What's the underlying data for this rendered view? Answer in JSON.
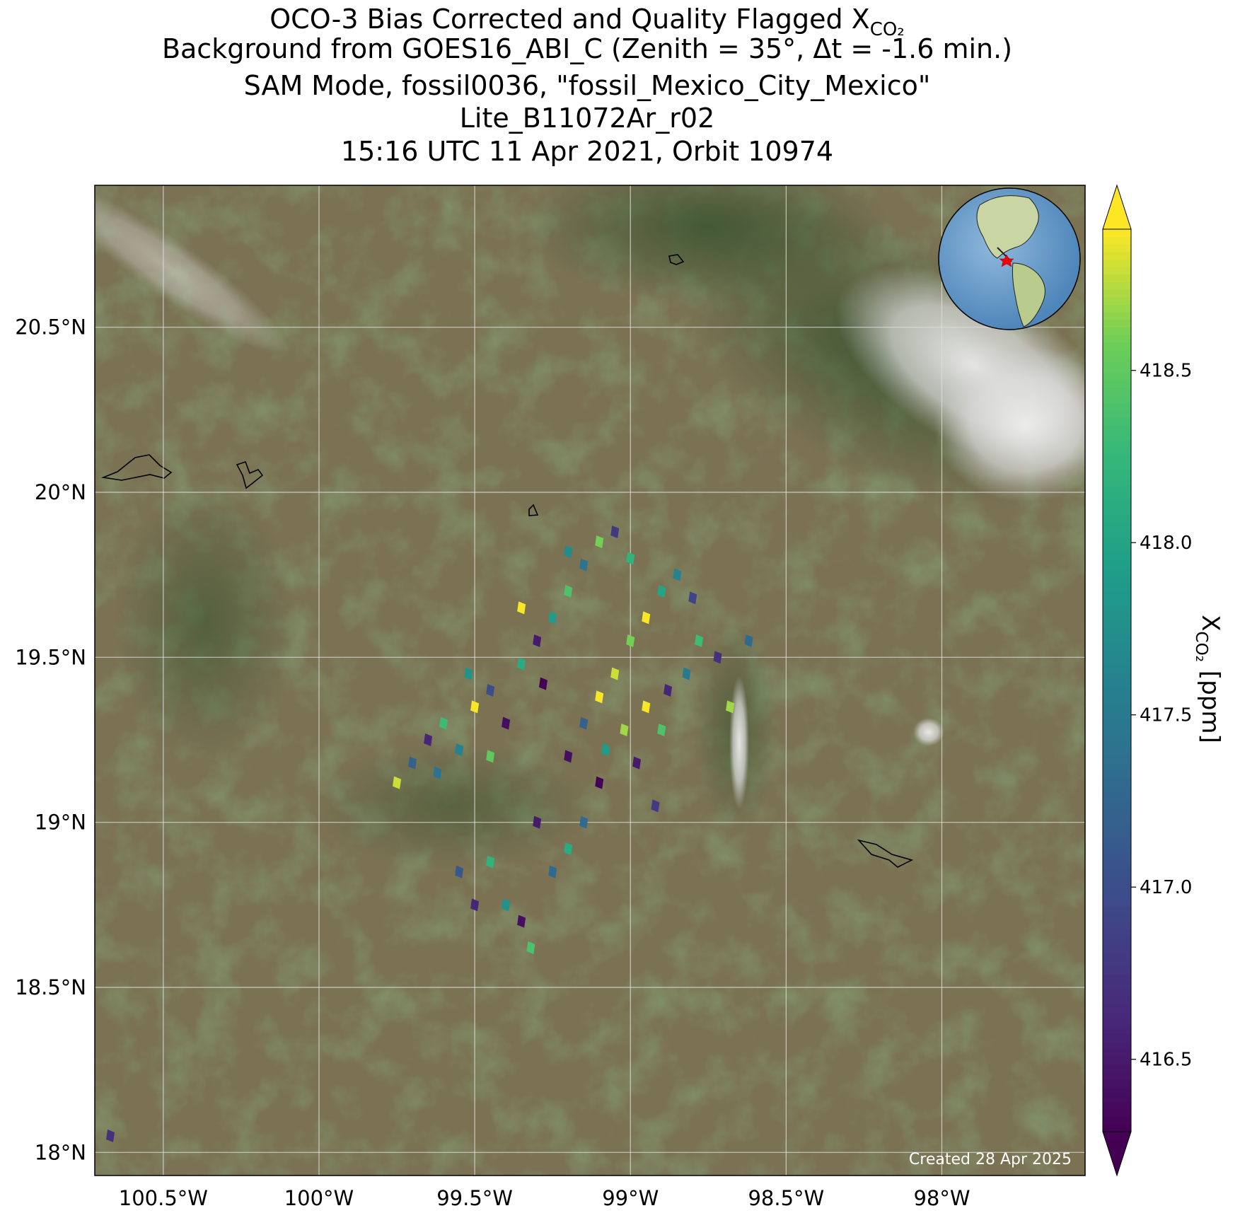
{
  "chart_data": {
    "type": "scatter",
    "title": "OCO-3 Bias Corrected and Quality Flagged X",
    "title_subscript": "CO₂",
    "subtitles": [
      "Background from GOES16_ABI_C (Zenith = 35$^\\circ$, Δt = -1.6 min.)",
      "SAM Mode, fossil0036, \"fossil_Mexico_City_Mexico\"",
      "Lite_B11072Ar_r02",
      "15:16 UTC 11 Apr 2021, Orbit 10974"
    ],
    "footnote": "Created 28 Apr 2025",
    "xlim": [
      -100.72,
      -97.54
    ],
    "ylim": [
      17.93,
      20.93
    ],
    "xticks": [
      {
        "value": -100.5,
        "label": "100.5°W"
      },
      {
        "value": -100,
        "label": "100°W"
      },
      {
        "value": -99.5,
        "label": "99.5°W"
      },
      {
        "value": -99,
        "label": "99°W"
      },
      {
        "value": -98.5,
        "label": "98.5°W"
      },
      {
        "value": -98,
        "label": "98°W"
      }
    ],
    "yticks": [
      {
        "value": 20.5,
        "label": "20.5°N"
      },
      {
        "value": 20,
        "label": "20°N"
      },
      {
        "value": 19.5,
        "label": "19.5°N"
      },
      {
        "value": 19,
        "label": "19°N"
      },
      {
        "value": 18.5,
        "label": "18.5°N"
      },
      {
        "value": 18,
        "label": "18°N"
      }
    ],
    "grid": true,
    "colormap": "viridis",
    "colorbar": {
      "label": "X",
      "label_subscript": "CO₂",
      "label_unit": "[ppm]",
      "clim": [
        416.29,
        418.91
      ],
      "ticks": [
        416.5,
        {
          "value": 417,
          "label": "417.0"
        },
        417.5,
        {
          "value": 418,
          "label": "418.0"
        },
        418.5
      ]
    },
    "x": [
      -99.75,
      -99.7,
      -99.65,
      -99.6,
      -99.55,
      -99.5,
      -99.45,
      -99.52,
      -99.4,
      -99.35,
      -99.3,
      -99.25,
      -99.35,
      -99.2,
      -99.15,
      -99.1,
      -99.05,
      -99.0,
      -99.2,
      -99.28,
      -99.62,
      -99.45,
      -99.2,
      -99.15,
      -99.1,
      -99.05,
      -99.0,
      -98.95,
      -98.9,
      -98.85,
      -98.8,
      -98.78,
      -98.82,
      -98.88,
      -98.95,
      -99.02,
      -99.1,
      -99.08,
      -98.98,
      -98.9,
      -98.72,
      -98.62,
      -98.68,
      -99.3,
      -99.55,
      -99.5,
      -99.45,
      -99.4,
      -99.35,
      -99.25,
      -99.2,
      -99.32,
      -98.92,
      -99.15,
      -100.67
    ],
    "y": [
      19.12,
      19.18,
      19.25,
      19.3,
      19.22,
      19.35,
      19.4,
      19.45,
      19.3,
      19.48,
      19.55,
      19.62,
      19.65,
      19.7,
      19.78,
      19.85,
      19.88,
      19.8,
      19.82,
      19.42,
      19.15,
      19.2,
      19.2,
      19.3,
      19.38,
      19.45,
      19.55,
      19.62,
      19.7,
      19.75,
      19.68,
      19.55,
      19.45,
      19.4,
      19.35,
      19.28,
      19.12,
      19.22,
      19.18,
      19.28,
      19.5,
      19.55,
      19.35,
      19.0,
      18.85,
      18.75,
      18.88,
      18.75,
      18.7,
      18.85,
      18.92,
      18.62,
      19.05,
      19.0,
      18.05
    ],
    "values": [
      418.8,
      417.2,
      416.6,
      418.3,
      417.6,
      418.9,
      417.0,
      417.8,
      416.4,
      418.1,
      416.5,
      417.9,
      418.9,
      418.4,
      417.4,
      418.6,
      416.8,
      418.2,
      417.7,
      416.3,
      417.4,
      418.5,
      416.4,
      417.2,
      418.9,
      418.8,
      418.6,
      418.9,
      418.0,
      417.6,
      416.9,
      418.3,
      417.5,
      416.6,
      418.9,
      418.7,
      416.3,
      417.9,
      416.5,
      418.4,
      416.7,
      417.3,
      418.7,
      416.5,
      417.1,
      416.6,
      418.2,
      417.8,
      416.4,
      417.3,
      418.1,
      418.4,
      416.8,
      417.3,
      416.7
    ]
  }
}
